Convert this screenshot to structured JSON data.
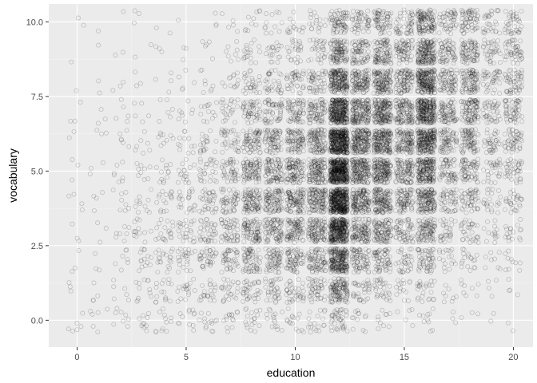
{
  "chart_data": {
    "type": "scatter",
    "title": "",
    "xlabel": "education",
    "ylabel": "vocabulary",
    "xlim": [
      -1.3,
      20.9
    ],
    "ylim": [
      -0.9,
      10.6
    ],
    "x_ticks": [
      0,
      5,
      10,
      15,
      20
    ],
    "x_tick_labels": [
      "0",
      "5",
      "10",
      "15",
      "20"
    ],
    "y_ticks": [
      0,
      2.5,
      5,
      7.5,
      10
    ],
    "y_tick_labels": [
      "0.0",
      "2.5",
      "5.0",
      "7.5",
      "10.0"
    ],
    "grid": true,
    "jitter": {
      "width": 0.4,
      "height": 0.4
    },
    "point_style": {
      "fill": "none",
      "stroke": "#000000",
      "opacity": 0.22
    },
    "colors": {
      "panel": "#ebebeb",
      "grid_major": "#ffffff",
      "grid_minor": "#f5f5f5"
    },
    "grid_counts": [
      {
        "education": 0,
        "counts": [
          6,
          3,
          3,
          3,
          4,
          3,
          2,
          3,
          1,
          1,
          2
        ]
      },
      {
        "education": 1,
        "counts": [
          6,
          4,
          3,
          3,
          4,
          3,
          3,
          3,
          2,
          1,
          1
        ]
      },
      {
        "education": 2,
        "counts": [
          8,
          6,
          7,
          7,
          8,
          7,
          6,
          5,
          3,
          2,
          1
        ]
      },
      {
        "education": 3,
        "counts": [
          10,
          12,
          14,
          13,
          11,
          9,
          7,
          5,
          3,
          2,
          3
        ]
      },
      {
        "education": 4,
        "counts": [
          12,
          16,
          20,
          20,
          17,
          13,
          9,
          6,
          4,
          3,
          2
        ]
      },
      {
        "education": 5,
        "counts": [
          12,
          18,
          25,
          25,
          22,
          17,
          12,
          8,
          5,
          3,
          1
        ]
      },
      {
        "education": 6,
        "counts": [
          14,
          22,
          34,
          36,
          34,
          28,
          20,
          13,
          8,
          5,
          3
        ]
      },
      {
        "education": 7,
        "counts": [
          14,
          25,
          42,
          50,
          52,
          45,
          35,
          23,
          13,
          8,
          5
        ]
      },
      {
        "education": 8,
        "counts": [
          18,
          35,
          65,
          85,
          95,
          88,
          70,
          50,
          30,
          18,
          10
        ]
      },
      {
        "education": 9,
        "counts": [
          15,
          35,
          65,
          85,
          95,
          90,
          75,
          55,
          33,
          20,
          12
        ]
      },
      {
        "education": 10,
        "counts": [
          15,
          38,
          70,
          95,
          110,
          105,
          90,
          65,
          40,
          25,
          15
        ]
      },
      {
        "education": 11,
        "counts": [
          18,
          45,
          80,
          110,
          130,
          125,
          108,
          80,
          50,
          30,
          18
        ]
      },
      {
        "education": 12,
        "counts": [
          40,
          120,
          230,
          330,
          420,
          440,
          400,
          310,
          190,
          110,
          70
        ]
      },
      {
        "education": 13,
        "counts": [
          12,
          35,
          75,
          115,
          150,
          175,
          180,
          160,
          115,
          75,
          50
        ]
      },
      {
        "education": 14,
        "counts": [
          10,
          30,
          65,
          105,
          145,
          170,
          185,
          175,
          135,
          95,
          65
        ]
      },
      {
        "education": 15,
        "counts": [
          5,
          15,
          35,
          60,
          85,
          105,
          120,
          120,
          95,
          70,
          50
        ]
      },
      {
        "education": 16,
        "counts": [
          10,
          25,
          55,
          95,
          145,
          190,
          230,
          250,
          215,
          165,
          120
        ]
      },
      {
        "education": 17,
        "counts": [
          3,
          8,
          18,
          30,
          48,
          62,
          75,
          82,
          75,
          62,
          48
        ]
      },
      {
        "education": 18,
        "counts": [
          3,
          8,
          18,
          32,
          50,
          68,
          85,
          95,
          90,
          78,
          62
        ]
      },
      {
        "education": 19,
        "counts": [
          2,
          4,
          8,
          14,
          22,
          30,
          38,
          42,
          40,
          36,
          30
        ]
      },
      {
        "education": 20,
        "counts": [
          2,
          4,
          10,
          18,
          28,
          40,
          50,
          56,
          54,
          48,
          40
        ]
      }
    ]
  }
}
